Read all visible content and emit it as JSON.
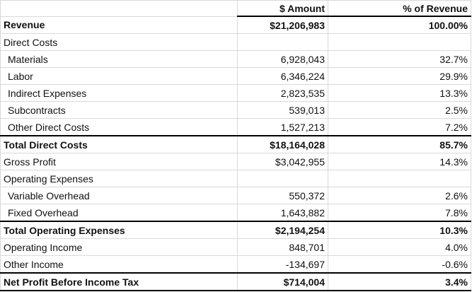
{
  "table": {
    "header": {
      "amount": "$ Amount",
      "percent": "% of Revenue"
    },
    "rows": [
      {
        "label": "Revenue",
        "amount": "$21,206,983",
        "percent": "100.00%"
      },
      {
        "label": "Direct Costs"
      },
      {
        "label": "Materials",
        "amount": "6,928,043",
        "percent": "32.7%"
      },
      {
        "label": "Labor",
        "amount": "6,346,224",
        "percent": "29.9%"
      },
      {
        "label": "Indirect Expenses",
        "amount": "2,823,535",
        "percent": "13.3%"
      },
      {
        "label": "Subcontracts",
        "amount": "539,013",
        "percent": "2.5%"
      },
      {
        "label": "Other Direct Costs",
        "amount": "1,527,213",
        "percent": "7.2%"
      },
      {
        "label": "Total Direct Costs",
        "amount": "$18,164,028",
        "percent": "85.7%"
      },
      {
        "label": "Gross Profit",
        "amount": "$3,042,955",
        "percent": "14.3%"
      },
      {
        "label": "Operating Expenses"
      },
      {
        "label": "Variable Overhead",
        "amount": "550,372",
        "percent": "2.6%"
      },
      {
        "label": "Fixed Overhead",
        "amount": "1,643,882",
        "percent": "7.8%"
      },
      {
        "label": "Total Operating Expenses",
        "amount": "$2,194,254",
        "percent": "10.3%"
      },
      {
        "label": "Operating Income",
        "amount": "848,701",
        "percent": "4.0%"
      },
      {
        "label": "Other Income",
        "amount": "-134,697",
        "percent": "-0.6%"
      },
      {
        "label": "Net Profit Before Income Tax",
        "amount": "$714,004",
        "percent": "3.4%"
      }
    ]
  }
}
